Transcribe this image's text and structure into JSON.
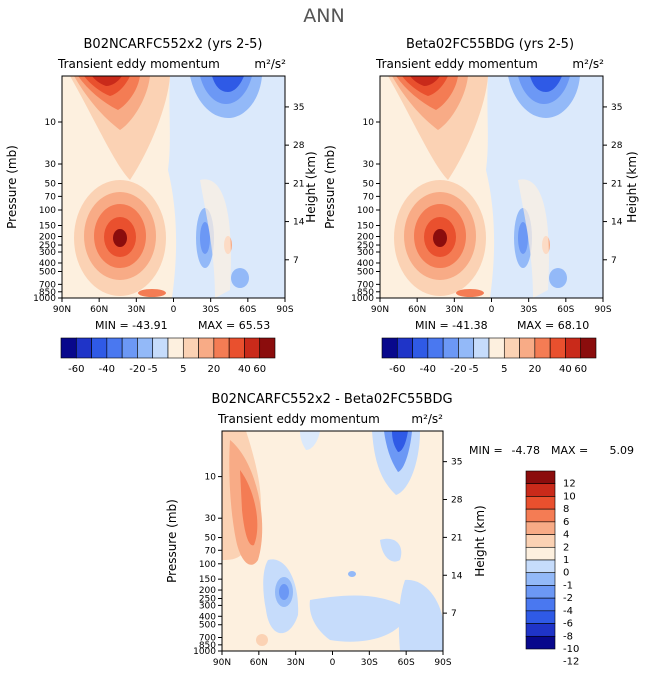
{
  "figure": {
    "season": "ANN"
  },
  "colors": {
    "levels_13": [
      "#08088c",
      "#1f34c8",
      "#2f5ae6",
      "#4a78f0",
      "#6c98f5",
      "#93b9f8",
      "#c6dcfb",
      "#fdf0df",
      "#fbd2b4",
      "#f8ab86",
      "#f47c54",
      "#e9502e",
      "#c92a1a",
      "#8b0d0d"
    ],
    "levels_14": [
      "#08088c",
      "#1f34c8",
      "#2f5ae6",
      "#4a78f0",
      "#6c98f5",
      "#93b9f8",
      "#c6dcfb",
      "#fdf0df",
      "#fbd2b4",
      "#f8ab86",
      "#f47c54",
      "#e9502e",
      "#c92a1a",
      "#8b0d0d"
    ]
  },
  "chart_data": [
    {
      "type": "heatmap",
      "title": "B02NCARFC552x2 (yrs 2-5)",
      "subtitle_left": "Transient eddy momentum",
      "units": "m²/s²",
      "ylabel": "Pressure (mb)",
      "ylabel_right": "Height (km)",
      "x_ticks": [
        "90N",
        "60N",
        "30N",
        "0",
        "30S",
        "60S",
        "90S"
      ],
      "y_ticks": [
        "10",
        "30",
        "50",
        "70",
        "100",
        "150",
        "200",
        "250",
        "300",
        "400",
        "500",
        "700",
        "850",
        "1000"
      ],
      "y_ticks_right": [
        "35",
        "28",
        "21",
        "14",
        "7"
      ],
      "min_label": "MIN = -43.91",
      "max_label": "MAX = 65.53",
      "features": [
        {
          "lat": 48,
          "p": 3,
          "value": 60
        },
        {
          "lat": 37,
          "p": 250,
          "value": 55
        },
        {
          "lat": -45,
          "p": 3,
          "value": -38
        },
        {
          "lat": -20,
          "p": 250,
          "value": -18
        },
        {
          "lat": -40,
          "p": 200,
          "value": 10
        }
      ]
    },
    {
      "type": "heatmap",
      "title": "Beta02FC55BDG (yrs 2-5)",
      "subtitle_left": "Transient eddy momentum",
      "units": "m²/s²",
      "ylabel": "Pressure (mb)",
      "ylabel_right": "Height (km)",
      "x_ticks": [
        "90N",
        "60N",
        "30N",
        "0",
        "30S",
        "60S",
        "90S"
      ],
      "y_ticks": [
        "10",
        "30",
        "50",
        "70",
        "100",
        "150",
        "200",
        "250",
        "300",
        "400",
        "500",
        "700",
        "850",
        "1000"
      ],
      "y_ticks_right": [
        "35",
        "28",
        "21",
        "14",
        "7"
      ],
      "min_label": "MIN = -41.38",
      "max_label": "MAX = 68.10",
      "features": [
        {
          "lat": 48,
          "p": 3,
          "value": 62
        },
        {
          "lat": 37,
          "p": 250,
          "value": 58
        },
        {
          "lat": -45,
          "p": 3,
          "value": -36
        },
        {
          "lat": -20,
          "p": 250,
          "value": -17
        },
        {
          "lat": -40,
          "p": 200,
          "value": 10
        }
      ]
    },
    {
      "type": "heatmap",
      "title": "B02NCARFC552x2 - Beta02FC55BDG",
      "subtitle_left": "Transient eddy momentum",
      "units": "m²/s²",
      "ylabel": "Pressure (mb)",
      "ylabel_right": "Height (km)",
      "x_ticks": [
        "90N",
        "60N",
        "30N",
        "0",
        "30S",
        "60S",
        "90S"
      ],
      "y_ticks": [
        "10",
        "30",
        "50",
        "70",
        "100",
        "150",
        "200",
        "250",
        "300",
        "400",
        "500",
        "700",
        "850",
        "1000"
      ],
      "y_ticks_right": [
        "35",
        "28",
        "21",
        "14",
        "7"
      ],
      "min_label": "MIN =",
      "min_value": "-4.78",
      "max_label": "MAX =",
      "max_value": "5.09",
      "features": [
        {
          "lat": 62,
          "p": 25,
          "value": 4.2
        },
        {
          "lat": 65,
          "p": 60,
          "value": 2.8
        },
        {
          "lat": -50,
          "p": 4,
          "value": -4.0
        },
        {
          "lat": 25,
          "p": 300,
          "value": -3.0
        },
        {
          "lat": -40,
          "p": 400,
          "value": -1.5
        }
      ]
    }
  ],
  "colorbar_top": {
    "labels": [
      "-60",
      "-40",
      "-20",
      "-5",
      "5",
      "20",
      "40",
      "60"
    ]
  },
  "colorbar_diff": {
    "labels": [
      "12",
      "10",
      "8",
      "6",
      "4",
      "2",
      "1",
      "0",
      "-1",
      "-2",
      "-4",
      "-6",
      "-8",
      "-10",
      "-12"
    ]
  }
}
